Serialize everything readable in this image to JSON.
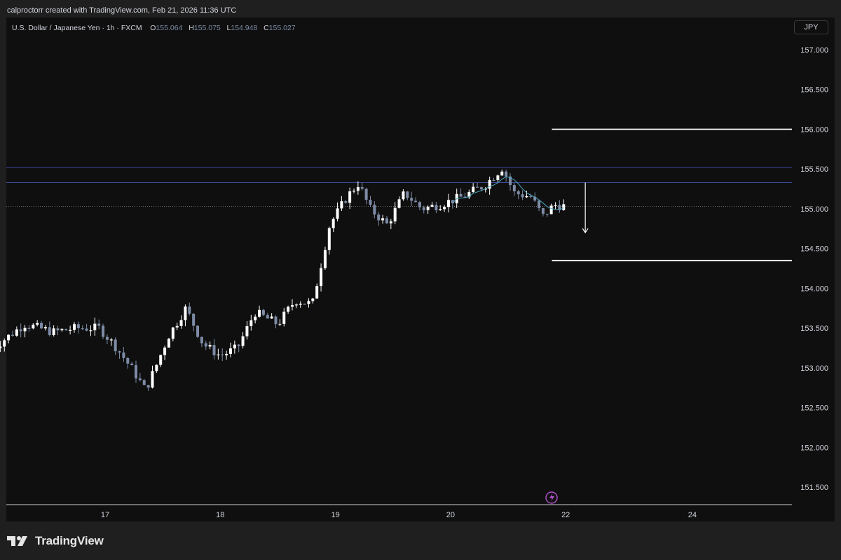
{
  "credit": "calproctorr created with TradingView.com, Feb 21, 2026 11:36 UTC",
  "symbol": {
    "name": "U.S. Dollar / Japanese Yen · 1h · FXCM",
    "o_label": "O",
    "o_value": "155.064",
    "h_label": "H",
    "h_value": "155.075",
    "l_label": "L",
    "l_value": "154.948",
    "c_label": "C",
    "c_value": "155.027"
  },
  "currency_button": "JPY",
  "brand": {
    "name": "TradingView",
    "logo_icon": "tradingview-logo-icon"
  },
  "colors": {
    "panel_bg": "#0f0f0f",
    "frame_bg": "#1f1f1f",
    "candle_up": "#ffffff",
    "candle_down": "#7d8ba6",
    "zone_line": "#3a4ba0",
    "level_line": "#ffffff",
    "ma_line": "#4fa6c2",
    "flash_icon": "#b04fc9"
  },
  "chart_data": {
    "type": "candlestick",
    "title": "",
    "xlabel": "",
    "ylabel": "",
    "ylim": [
      151.3,
      157.3
    ],
    "y_ticks": [
      "157.000",
      "156.500",
      "156.000",
      "155.500",
      "155.000",
      "154.500",
      "154.000",
      "153.500",
      "153.000",
      "152.500",
      "152.000",
      "151.500"
    ],
    "x_ticks": [
      {
        "label": "17",
        "day": 17
      },
      {
        "label": "18",
        "day": 18
      },
      {
        "label": "19",
        "day": 19
      },
      {
        "label": "20",
        "day": 20
      },
      {
        "label": "22",
        "day": 21
      },
      {
        "label": "24",
        "day": 22.1
      }
    ],
    "x_start_day": 16.0,
    "close_path": [
      [
        16.0,
        153.22
      ],
      [
        16.3,
        153.55
      ],
      [
        16.55,
        153.45
      ],
      [
        16.75,
        153.5
      ],
      [
        16.95,
        153.5
      ],
      [
        17.1,
        153.25
      ],
      [
        17.25,
        152.95
      ],
      [
        17.35,
        152.72
      ],
      [
        17.45,
        153.05
      ],
      [
        17.55,
        153.4
      ],
      [
        17.7,
        153.75
      ],
      [
        17.85,
        153.3
      ],
      [
        18.0,
        153.15
      ],
      [
        18.15,
        153.25
      ],
      [
        18.3,
        153.7
      ],
      [
        18.5,
        153.55
      ],
      [
        18.65,
        153.85
      ],
      [
        18.8,
        153.8
      ],
      [
        18.95,
        154.8
      ],
      [
        19.1,
        155.15
      ],
      [
        19.2,
        155.32
      ],
      [
        19.3,
        155.0
      ],
      [
        19.45,
        154.8
      ],
      [
        19.6,
        155.2
      ],
      [
        19.75,
        155.0
      ],
      [
        19.9,
        155.05
      ],
      [
        20.1,
        155.15
      ],
      [
        20.3,
        155.3
      ],
      [
        20.45,
        155.52
      ],
      [
        20.55,
        155.2
      ],
      [
        20.7,
        155.15
      ],
      [
        20.8,
        154.9
      ],
      [
        20.9,
        155.05
      ],
      [
        21.0,
        155.03
      ]
    ],
    "candles_count": 140,
    "horizontal_levels": [
      {
        "price": 155.52,
        "kind": "zone_top",
        "from_day": 16.0,
        "to_day": 22.9
      },
      {
        "price": 155.33,
        "kind": "zone_bottom",
        "from_day": 16.0,
        "to_day": 22.9
      },
      {
        "price": 156.0,
        "kind": "target_top",
        "from_day": 20.88,
        "to_day": 22.8
      },
      {
        "price": 154.35,
        "kind": "target_bottom",
        "from_day": 20.88,
        "to_day": 22.8
      },
      {
        "price": 155.03,
        "kind": "current_price_dotted",
        "from_day": 16.0,
        "to_day": 22.9
      }
    ],
    "arrow": {
      "day": 21.17,
      "from_price": 155.33,
      "to_price": 154.7,
      "direction": "down"
    },
    "grid": false,
    "legend": "none"
  }
}
